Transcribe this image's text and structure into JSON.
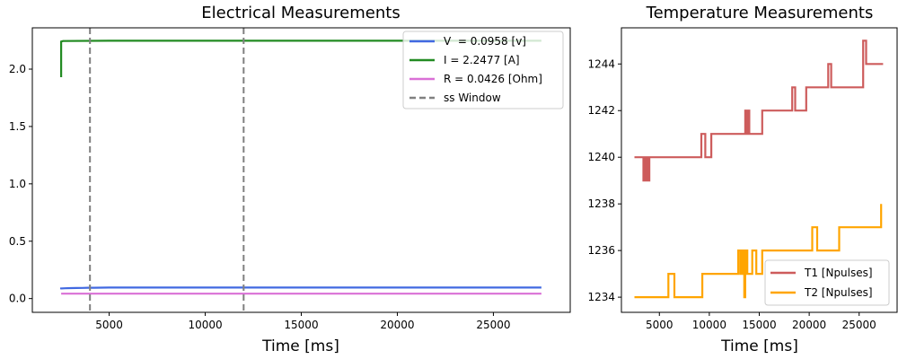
{
  "chart_data": [
    {
      "type": "line",
      "title": "Electrical Measurements",
      "xlabel": "Time [ms]",
      "ylabel": "",
      "xlim": [
        1000,
        29000
      ],
      "ylim": [
        -0.12,
        2.36
      ],
      "xticks": [
        5000,
        10000,
        15000,
        20000,
        25000
      ],
      "yticks": [
        0.0,
        0.5,
        1.0,
        1.5,
        2.0
      ],
      "grid": false,
      "legend_position": "top-right",
      "series": [
        {
          "name": "V  = 0.0958 [v]",
          "color": "#4169e1",
          "x": [
            2500,
            2500,
            2700,
            3000,
            3300,
            3600,
            3900,
            4200,
            4600,
            5000,
            6000,
            10000,
            15000,
            20000,
            25000,
            27500
          ],
          "y": [
            0.08,
            0.088,
            0.09,
            0.091,
            0.092,
            0.093,
            0.094,
            0.094,
            0.095,
            0.096,
            0.0958,
            0.0958,
            0.0958,
            0.0958,
            0.0958,
            0.0958
          ]
        },
        {
          "name": "I = 2.2477 [A]",
          "color": "#228b22",
          "x": [
            2500,
            2500,
            2600,
            5000,
            10000,
            15000,
            20000,
            25000,
            27500
          ],
          "y": [
            1.93,
            2.24,
            2.245,
            2.2477,
            2.2477,
            2.2477,
            2.2477,
            2.2477,
            2.2477
          ]
        },
        {
          "name": "R = 0.0426 [Ohm]",
          "color": "#da70d6",
          "x": [
            2500,
            5000,
            10000,
            15000,
            20000,
            25000,
            27500
          ],
          "y": [
            0.0426,
            0.0426,
            0.0426,
            0.0426,
            0.0426,
            0.0426,
            0.0426
          ]
        }
      ],
      "vlines": {
        "name": "ss Window",
        "color": "#808080",
        "x": [
          4000,
          12000
        ]
      }
    },
    {
      "type": "line",
      "title": "Temperature Measurements",
      "xlabel": "Time [ms]",
      "ylabel": "",
      "xlim": [
        1200,
        28800
      ],
      "ylim": [
        1233.35,
        1245.55
      ],
      "xticks": [
        5000,
        10000,
        15000,
        20000,
        25000
      ],
      "yticks": [
        1234,
        1236,
        1238,
        1240,
        1242,
        1244
      ],
      "grid": false,
      "legend_position": "bottom-right",
      "series": [
        {
          "name": "T1 [Npulses]",
          "color": "#cd5c5c",
          "x": [
            2500,
            3400,
            3400,
            3600,
            3600,
            3800,
            3800,
            4000,
            4000,
            9200,
            9200,
            9600,
            9600,
            10200,
            10200,
            13600,
            13600,
            13700,
            13700,
            13800,
            13800,
            14000,
            14000,
            15300,
            15300,
            15500,
            15500,
            18300,
            18300,
            18600,
            18600,
            19700,
            19700,
            21900,
            21900,
            22200,
            22200,
            25400,
            25400,
            25700,
            25700,
            27400
          ],
          "y": [
            1240,
            1240,
            1239,
            1239,
            1240,
            1240,
            1239,
            1239,
            1240,
            1240,
            1241,
            1241,
            1240,
            1240,
            1241,
            1241,
            1242,
            1242,
            1241,
            1241,
            1242,
            1242,
            1241,
            1241,
            1242,
            1242,
            1242,
            1242,
            1243,
            1243,
            1242,
            1242,
            1243,
            1243,
            1244,
            1244,
            1243,
            1243,
            1245,
            1245,
            1244,
            1244
          ]
        },
        {
          "name": "T2 [Npulses]",
          "color": "#ffa500",
          "x": [
            2500,
            5900,
            5900,
            6500,
            6500,
            9300,
            9300,
            12900,
            12900,
            13100,
            13100,
            13300,
            13300,
            13500,
            13500,
            13600,
            13600,
            13700,
            13700,
            13800,
            13800,
            14300,
            14300,
            14700,
            14700,
            15300,
            15300,
            15500,
            15500,
            20300,
            20300,
            20800,
            20800,
            23000,
            23000,
            27200,
            27200
          ],
          "y": [
            1234,
            1234,
            1235,
            1235,
            1234,
            1234,
            1235,
            1235,
            1236,
            1236,
            1235,
            1235,
            1236,
            1236,
            1234,
            1234,
            1235,
            1235,
            1236,
            1236,
            1235,
            1235,
            1236,
            1236,
            1235,
            1235,
            1236,
            1236,
            1236,
            1236,
            1237,
            1237,
            1236,
            1236,
            1237,
            1237,
            1238
          ]
        }
      ]
    }
  ]
}
